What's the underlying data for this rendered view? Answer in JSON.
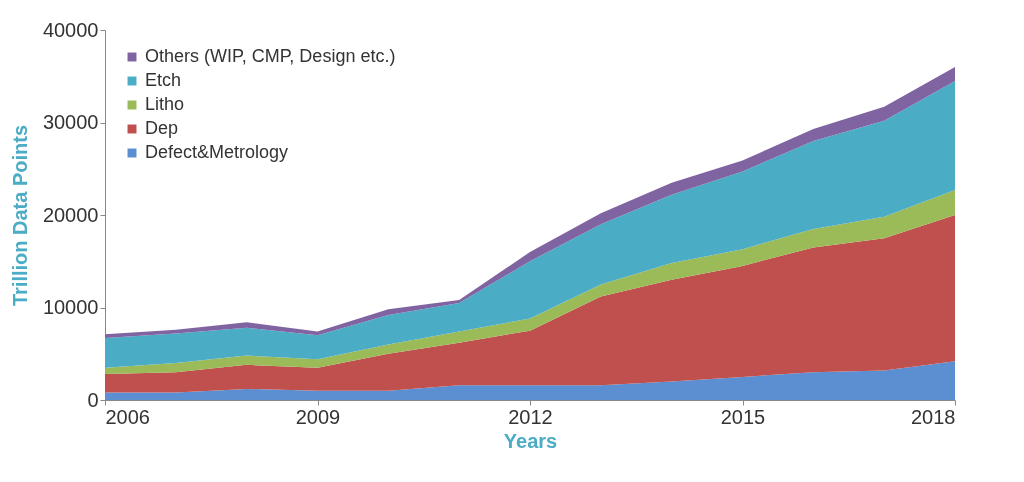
{
  "chart_data": {
    "type": "area",
    "xlabel": "Years",
    "ylabel": "Trillion Data Points",
    "x": [
      2006,
      2007,
      2008,
      2009,
      2010,
      2011,
      2012,
      2013,
      2014,
      2015,
      2016,
      2017,
      2018
    ],
    "stacked": true,
    "xlim": [
      2006,
      2018
    ],
    "xticks": [
      2006,
      2009,
      2012,
      2015,
      2018
    ],
    "ylim": [
      0,
      40000
    ],
    "yticks": [
      0,
      10000,
      20000,
      30000,
      40000
    ],
    "grid": false,
    "legend": "top left",
    "series": [
      {
        "name": "Defect&Metrology",
        "color": "#5b8fd1",
        "values": [
          800,
          800,
          1200,
          1000,
          1000,
          1600,
          1600,
          1600,
          2000,
          2500,
          3000,
          3200,
          4200
        ]
      },
      {
        "name": "Dep",
        "color": "#c0504d",
        "values": [
          2000,
          2200,
          2600,
          2500,
          4000,
          4600,
          5900,
          9600,
          11000,
          12000,
          13500,
          14300,
          15800
        ]
      },
      {
        "name": "Litho",
        "color": "#9bbb59",
        "values": [
          700,
          1000,
          1000,
          900,
          1000,
          1200,
          1300,
          1300,
          1800,
          1800,
          2000,
          2300,
          2700
        ]
      },
      {
        "name": "Etch",
        "color": "#4bacc6",
        "values": [
          3200,
          3200,
          3000,
          2600,
          3200,
          3100,
          6200,
          6500,
          7400,
          8400,
          9500,
          10400,
          11800
        ]
      },
      {
        "name": "Others (WIP, CMP, Design etc.)",
        "color": "#8064a2",
        "values": [
          400,
          400,
          600,
          400,
          600,
          300,
          1000,
          1200,
          1300,
          1200,
          1300,
          1500,
          1500
        ]
      }
    ]
  }
}
